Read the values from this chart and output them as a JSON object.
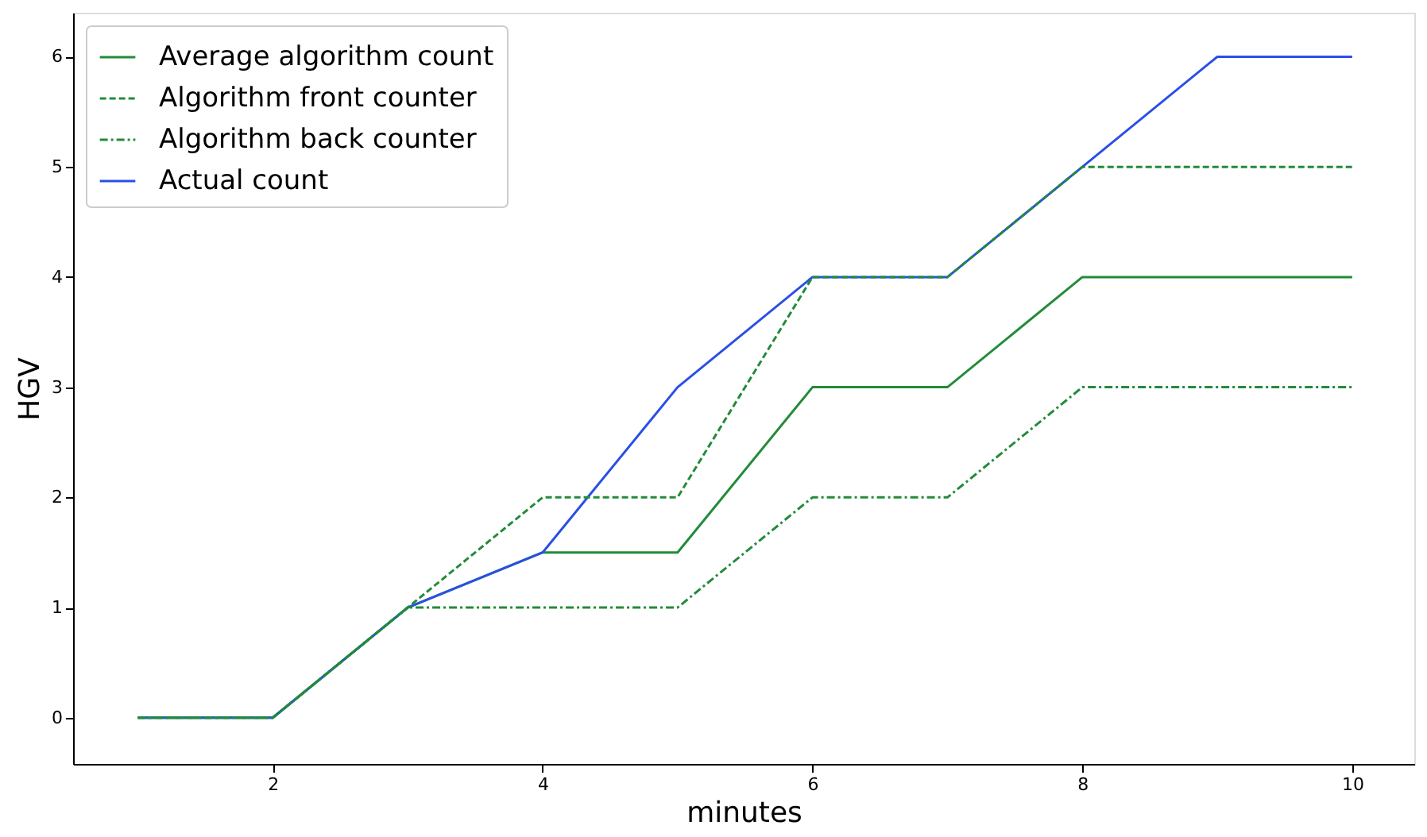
{
  "chart_data": {
    "type": "line",
    "xlabel": "minutes",
    "ylabel": "HGV",
    "x": [
      1,
      2,
      3,
      4,
      5,
      6,
      7,
      8,
      9,
      10
    ],
    "series": [
      {
        "name": "Average algorithm count",
        "color": "#238b3a",
        "line_style": "solid",
        "values": [
          0,
          0,
          1,
          1.5,
          1.5,
          3,
          3,
          4,
          4,
          4
        ]
      },
      {
        "name": "Algorithm front counter",
        "color": "#238b3a",
        "line_style": "dashed",
        "values": [
          0,
          0,
          1,
          2,
          2,
          4,
          4,
          5,
          5,
          5
        ]
      },
      {
        "name": "Algorithm back counter",
        "color": "#238b3a",
        "line_style": "dashdot",
        "values": [
          0,
          0,
          1,
          1,
          1,
          2,
          2,
          3,
          3,
          3
        ]
      },
      {
        "name": "Actual count",
        "color": "#2a4fe6",
        "line_style": "solid",
        "values": [
          0,
          0,
          1,
          1.5,
          3,
          4,
          4,
          5,
          6,
          6
        ]
      }
    ],
    "xlim": [
      0.52,
      10.46
    ],
    "ylim": [
      -0.42,
      6.4
    ],
    "xticks": [
      2,
      4,
      6,
      8,
      10
    ],
    "yticks": [
      0,
      1,
      2,
      3,
      4,
      5,
      6
    ],
    "grid": false,
    "legend": "top left",
    "marker": "none"
  }
}
